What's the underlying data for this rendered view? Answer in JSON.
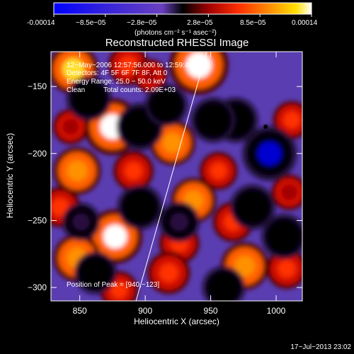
{
  "colorbar": {
    "ticks": [
      "-0.00014",
      "−8.5e−05",
      "−2.8e−05",
      "2.8e−05",
      "8.5e−05",
      "0.00014"
    ],
    "units_label": "(photons cm⁻² s⁻¹ asec⁻²)",
    "colors": [
      "#0000ff",
      "#4a2fd0",
      "#6a40c0",
      "#000000",
      "#a00000",
      "#ff3000",
      "#ff9000",
      "#ffe000",
      "#ffffff"
    ]
  },
  "annotation": {
    "line1": "12−May−2006 12:57:56.000 to 12:59:44.000",
    "line2": "Detectors: 4F 5F 6F 7F 8F, Att 0",
    "line3": "Energy Range: 25.0 − 50.0 keV",
    "line4_a": "Clean",
    "line4_b": "Total counts: 2.09E+03",
    "peak": "Position of Peak = [940,−123]"
  },
  "timestamp": "17−Jul−2013 23:02",
  "chart_data": {
    "type": "heatmap",
    "title": "Reconstructed RHESSI Image",
    "xlabel": "Heliocentric X (arcsec)",
    "ylabel": "Heliocentric Y (arcsec)",
    "xlim": [
      828,
      1020
    ],
    "ylim": [
      -310,
      -124
    ],
    "xticks": [
      850,
      900,
      950,
      1000
    ],
    "yticks": [
      -150,
      -200,
      -250,
      -300
    ],
    "xtick_labels": [
      "850",
      "900",
      "950",
      "1000"
    ],
    "ytick_labels": [
      "−150",
      "−200",
      "−250",
      "−300"
    ],
    "zlim": [
      -0.00014,
      0.00014
    ],
    "limb_line": [
      [
        893,
        -310
      ],
      [
        947,
        -124
      ]
    ],
    "peak": [
      940,
      -123
    ],
    "source_blobs": [
      {
        "x": 845,
        "y": -137,
        "value": 0.0001
      },
      {
        "x": 887,
        "y": -134,
        "value": 6e-05
      },
      {
        "x": 941,
        "y": -134,
        "value": 0.00014
      },
      {
        "x": 904,
        "y": -142,
        "value": 3e-05
      },
      {
        "x": 875,
        "y": -180,
        "value": 0.00013
      },
      {
        "x": 843,
        "y": -180,
        "value": 4e-05
      },
      {
        "x": 848,
        "y": -213,
        "value": 9e-05
      },
      {
        "x": 891,
        "y": -213,
        "value": 6e-05
      },
      {
        "x": 921,
        "y": -192,
        "value": 8e-05
      },
      {
        "x": 956,
        "y": -213,
        "value": 5e-05
      },
      {
        "x": 937,
        "y": -235,
        "value": 8e-05
      },
      {
        "x": 835,
        "y": -240,
        "value": 6e-05
      },
      {
        "x": 877,
        "y": -262,
        "value": 0.00012
      },
      {
        "x": 926,
        "y": -267,
        "value": 6e-05
      },
      {
        "x": 967,
        "y": -251,
        "value": 6e-05
      },
      {
        "x": 1010,
        "y": -229,
        "value": 4e-05
      },
      {
        "x": 1012,
        "y": -175,
        "value": 5e-05
      },
      {
        "x": 976,
        "y": -284,
        "value": 9e-05
      },
      {
        "x": 1008,
        "y": -286,
        "value": 6e-05
      },
      {
        "x": 848,
        "y": -278,
        "value": 9e-05
      },
      {
        "x": 918,
        "y": -289,
        "value": 7e-05
      },
      {
        "x": 880,
        "y": -302,
        "value": 5e-05
      },
      {
        "x": 995,
        "y": -200,
        "value": -0.00012
      },
      {
        "x": 969,
        "y": -175,
        "value": -8e-05
      },
      {
        "x": 982,
        "y": -240,
        "value": -8e-05
      },
      {
        "x": 857,
        "y": -159,
        "value": -8e-05
      },
      {
        "x": 896,
        "y": -180,
        "value": -9e-05
      },
      {
        "x": 916,
        "y": -164,
        "value": -7e-05
      },
      {
        "x": 896,
        "y": -240,
        "value": -8e-05
      },
      {
        "x": 952,
        "y": -175,
        "value": -8e-05
      },
      {
        "x": 862,
        "y": -289,
        "value": -7e-05
      },
      {
        "x": 960,
        "y": -300,
        "value": -7e-05
      },
      {
        "x": 1006,
        "y": -262,
        "value": -8e-05
      },
      {
        "x": 926,
        "y": -251,
        "value": -6e-05
      },
      {
        "x": 851,
        "y": -251,
        "value": -5e-05
      }
    ]
  }
}
